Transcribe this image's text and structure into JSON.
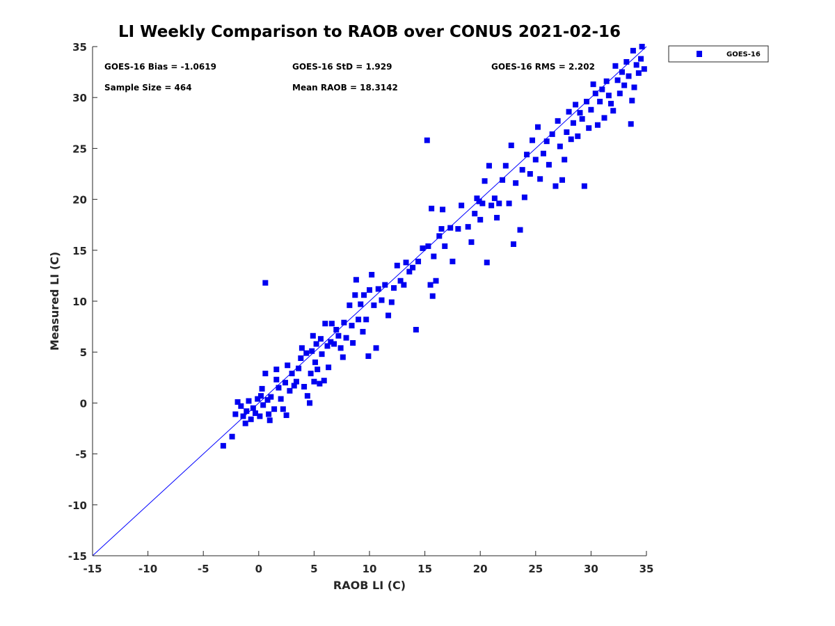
{
  "chart_data": {
    "type": "scatter",
    "title": "LI Weekly Comparison to RAOB over CONUS 2021-02-16",
    "xlabel": "RAOB LI (C)",
    "ylabel": "Measured LI (C)",
    "xlim": [
      -15,
      35
    ],
    "ylim": [
      -15,
      35
    ],
    "xticks": [
      "-15",
      "-10",
      "-5",
      "0",
      "5",
      "10",
      "15",
      "20",
      "25",
      "30",
      "35"
    ],
    "yticks": [
      "-15",
      "-10",
      "-5",
      "0",
      "5",
      "10",
      "15",
      "20",
      "25",
      "30",
      "35"
    ],
    "grid": false,
    "legend": {
      "position": "outside-top-right",
      "entries": [
        "GOES-16"
      ]
    },
    "annotations": {
      "bias": "GOES-16 Bias = -1.0619",
      "std": "GOES-16 StD = 1.929",
      "rms": "GOES-16 RMS = 2.202",
      "sample": "Sample Size = 464",
      "mean": "Mean RAOB = 18.3142"
    },
    "reference_line": {
      "type": "one-to-one",
      "from": [
        -15,
        -15
      ],
      "to": [
        35,
        35
      ]
    },
    "colors": {
      "marker": "#0000f0",
      "line": "#0000ff"
    },
    "series": [
      {
        "name": "GOES-16",
        "points": [
          [
            -3.2,
            -4.2
          ],
          [
            -2.4,
            -3.3
          ],
          [
            -2.1,
            -1.1
          ],
          [
            -1.9,
            0.1
          ],
          [
            -1.6,
            -0.3
          ],
          [
            -1.4,
            -1.3
          ],
          [
            -1.2,
            -2.0
          ],
          [
            -1.1,
            -0.8
          ],
          [
            -0.9,
            0.2
          ],
          [
            -0.7,
            -1.6
          ],
          [
            -0.5,
            -0.5
          ],
          [
            -0.3,
            -1.0
          ],
          [
            -0.1,
            0.4
          ],
          [
            0.1,
            -1.3
          ],
          [
            0.2,
            0.7
          ],
          [
            0.3,
            1.4
          ],
          [
            0.4,
            -0.2
          ],
          [
            0.6,
            2.9
          ],
          [
            0.6,
            11.8
          ],
          [
            0.8,
            0.3
          ],
          [
            0.9,
            -1.1
          ],
          [
            1.0,
            -1.7
          ],
          [
            1.1,
            0.6
          ],
          [
            1.4,
            -0.6
          ],
          [
            1.6,
            2.3
          ],
          [
            1.6,
            3.3
          ],
          [
            1.8,
            1.5
          ],
          [
            2.0,
            0.4
          ],
          [
            2.2,
            -0.6
          ],
          [
            2.4,
            2.0
          ],
          [
            2.5,
            -1.2
          ],
          [
            2.6,
            3.7
          ],
          [
            2.8,
            1.2
          ],
          [
            3.0,
            2.9
          ],
          [
            3.2,
            1.7
          ],
          [
            3.4,
            2.1
          ],
          [
            3.6,
            3.4
          ],
          [
            3.8,
            4.4
          ],
          [
            3.9,
            5.4
          ],
          [
            4.1,
            1.6
          ],
          [
            4.3,
            4.9
          ],
          [
            4.4,
            0.7
          ],
          [
            4.6,
            0.0
          ],
          [
            4.7,
            2.9
          ],
          [
            4.8,
            5.1
          ],
          [
            4.9,
            6.6
          ],
          [
            5.0,
            2.1
          ],
          [
            5.1,
            4.0
          ],
          [
            5.2,
            5.8
          ],
          [
            5.3,
            3.3
          ],
          [
            5.5,
            1.9
          ],
          [
            5.6,
            6.3
          ],
          [
            5.7,
            4.8
          ],
          [
            5.9,
            2.2
          ],
          [
            6.0,
            7.8
          ],
          [
            6.2,
            5.6
          ],
          [
            6.3,
            3.5
          ],
          [
            6.5,
            6.0
          ],
          [
            6.6,
            7.8
          ],
          [
            6.8,
            5.8
          ],
          [
            7.0,
            7.2
          ],
          [
            7.2,
            6.6
          ],
          [
            7.4,
            5.4
          ],
          [
            7.6,
            4.5
          ],
          [
            7.7,
            7.9
          ],
          [
            7.9,
            6.4
          ],
          [
            8.2,
            9.6
          ],
          [
            8.4,
            7.6
          ],
          [
            8.5,
            5.9
          ],
          [
            8.7,
            10.6
          ],
          [
            8.8,
            12.1
          ],
          [
            9.0,
            8.2
          ],
          [
            9.2,
            9.7
          ],
          [
            9.4,
            7.0
          ],
          [
            9.5,
            10.6
          ],
          [
            9.7,
            8.2
          ],
          [
            9.9,
            4.6
          ],
          [
            10.0,
            11.1
          ],
          [
            10.2,
            12.6
          ],
          [
            10.4,
            9.6
          ],
          [
            10.6,
            5.4
          ],
          [
            10.8,
            11.2
          ],
          [
            11.1,
            10.1
          ],
          [
            11.4,
            11.6
          ],
          [
            11.7,
            8.6
          ],
          [
            12.0,
            9.9
          ],
          [
            12.2,
            11.3
          ],
          [
            12.5,
            13.5
          ],
          [
            12.8,
            12.0
          ],
          [
            13.1,
            11.6
          ],
          [
            13.3,
            13.8
          ],
          [
            13.6,
            12.9
          ],
          [
            13.9,
            13.3
          ],
          [
            14.2,
            7.2
          ],
          [
            14.4,
            13.9
          ],
          [
            14.8,
            15.2
          ],
          [
            15.2,
            25.8
          ],
          [
            15.3,
            15.4
          ],
          [
            15.5,
            11.6
          ],
          [
            15.6,
            19.1
          ],
          [
            15.7,
            10.5
          ],
          [
            15.8,
            14.4
          ],
          [
            16.0,
            12.0
          ],
          [
            16.3,
            16.4
          ],
          [
            16.5,
            17.1
          ],
          [
            16.6,
            19.0
          ],
          [
            16.8,
            15.4
          ],
          [
            17.3,
            17.2
          ],
          [
            17.5,
            13.9
          ],
          [
            18.0,
            17.1
          ],
          [
            18.3,
            19.4
          ],
          [
            18.9,
            17.3
          ],
          [
            19.2,
            15.8
          ],
          [
            19.5,
            18.6
          ],
          [
            19.7,
            20.1
          ],
          [
            19.9,
            19.8
          ],
          [
            20.0,
            18.0
          ],
          [
            20.2,
            19.6
          ],
          [
            20.4,
            21.8
          ],
          [
            20.6,
            13.8
          ],
          [
            20.8,
            23.3
          ],
          [
            21.0,
            19.4
          ],
          [
            21.3,
            20.1
          ],
          [
            21.5,
            18.2
          ],
          [
            21.7,
            19.6
          ],
          [
            22.0,
            21.9
          ],
          [
            22.3,
            23.3
          ],
          [
            22.6,
            19.6
          ],
          [
            22.8,
            25.3
          ],
          [
            23.0,
            15.6
          ],
          [
            23.2,
            21.6
          ],
          [
            23.6,
            17.0
          ],
          [
            23.8,
            22.9
          ],
          [
            24.0,
            20.2
          ],
          [
            24.2,
            24.4
          ],
          [
            24.5,
            22.5
          ],
          [
            24.7,
            25.8
          ],
          [
            25.0,
            23.9
          ],
          [
            25.2,
            27.1
          ],
          [
            25.4,
            22.0
          ],
          [
            25.7,
            24.5
          ],
          [
            26.0,
            25.7
          ],
          [
            26.2,
            23.4
          ],
          [
            26.5,
            26.4
          ],
          [
            26.8,
            21.3
          ],
          [
            27.0,
            27.7
          ],
          [
            27.2,
            25.2
          ],
          [
            27.4,
            21.9
          ],
          [
            27.6,
            23.9
          ],
          [
            27.8,
            26.6
          ],
          [
            28.0,
            28.6
          ],
          [
            28.2,
            25.9
          ],
          [
            28.4,
            27.5
          ],
          [
            28.6,
            29.3
          ],
          [
            28.8,
            26.2
          ],
          [
            29.0,
            28.5
          ],
          [
            29.2,
            27.9
          ],
          [
            29.4,
            21.3
          ],
          [
            29.6,
            29.6
          ],
          [
            29.8,
            27.0
          ],
          [
            30.0,
            28.8
          ],
          [
            30.2,
            31.3
          ],
          [
            30.4,
            30.4
          ],
          [
            30.6,
            27.3
          ],
          [
            30.8,
            29.6
          ],
          [
            31.0,
            30.8
          ],
          [
            31.2,
            28.0
          ],
          [
            31.4,
            31.6
          ],
          [
            31.6,
            30.2
          ],
          [
            31.8,
            29.4
          ],
          [
            32.0,
            28.7
          ],
          [
            32.2,
            33.1
          ],
          [
            32.4,
            31.7
          ],
          [
            32.6,
            30.4
          ],
          [
            32.8,
            32.5
          ],
          [
            33.0,
            31.2
          ],
          [
            33.2,
            33.5
          ],
          [
            33.4,
            32.1
          ],
          [
            33.6,
            27.4
          ],
          [
            33.7,
            29.7
          ],
          [
            33.8,
            34.6
          ],
          [
            33.9,
            31.0
          ],
          [
            34.1,
            33.2
          ],
          [
            34.3,
            32.4
          ],
          [
            34.5,
            33.8
          ],
          [
            34.6,
            35.0
          ],
          [
            34.8,
            32.8
          ]
        ]
      }
    ]
  }
}
